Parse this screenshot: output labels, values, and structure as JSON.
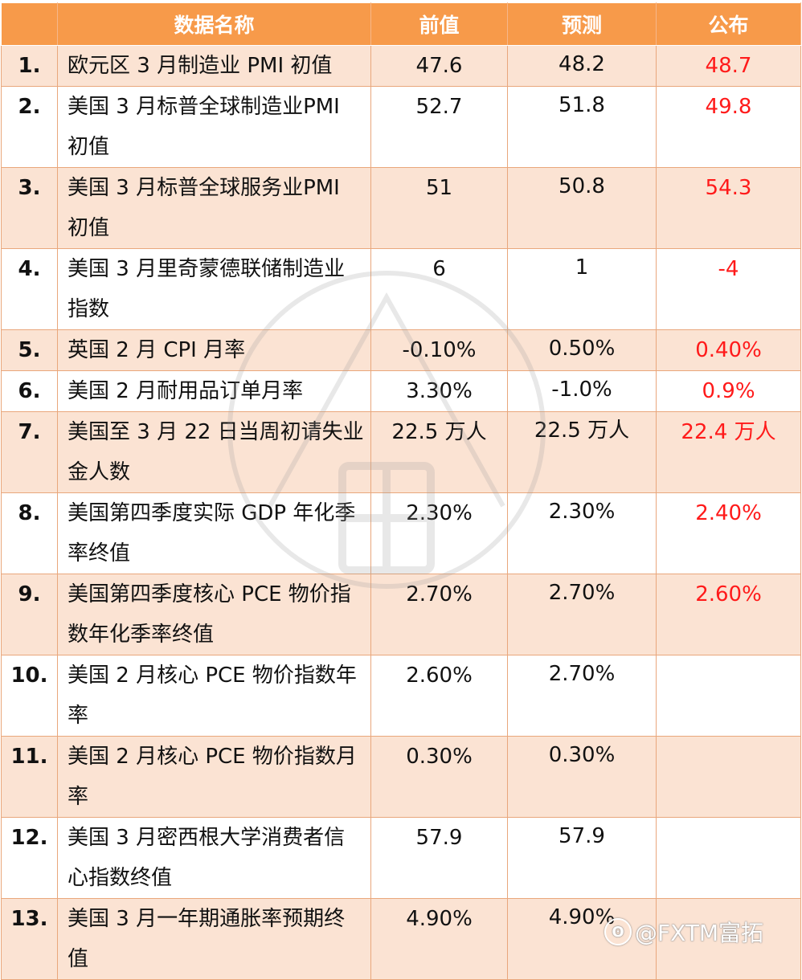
{
  "table": {
    "headers": [
      "",
      "数据名称",
      "前值",
      "预测",
      "公布"
    ],
    "rows": [
      {
        "index": "1.",
        "name": "欧元区 3 月制造业 PMI 初值",
        "prev": "47.6",
        "forecast": "48.2",
        "published": "48.7"
      },
      {
        "index": "2.",
        "name": "美国 3 月标普全球制造业PMI 初值",
        "prev": "52.7",
        "forecast": "51.8",
        "published": "49.8"
      },
      {
        "index": "3.",
        "name": "美国 3 月标普全球服务业PMI 初值",
        "prev": "51",
        "forecast": "50.8",
        "published": "54.3"
      },
      {
        "index": "4.",
        "name": "美国 3 月里奇蒙德联储制造业指数",
        "prev": "6",
        "forecast": "1",
        "published": "-4"
      },
      {
        "index": "5.",
        "name": "英国 2 月 CPI 月率",
        "prev": "-0.10%",
        "forecast": "0.50%",
        "published": "0.40%"
      },
      {
        "index": "6.",
        "name": "美国 2 月耐用品订单月率",
        "prev": "3.30%",
        "forecast": "-1.0%",
        "published": "0.9%"
      },
      {
        "index": "7.",
        "name": "美国至 3 月 22 日当周初请失业金人数",
        "prev": "22.5 万人",
        "forecast": "22.5 万人",
        "published": "22.4 万人"
      },
      {
        "index": "8.",
        "name": "美国第四季度实际 GDP 年化季率终值",
        "prev": "2.30%",
        "forecast": "2.30%",
        "published": "2.40%"
      },
      {
        "index": "9.",
        "name": "美国第四季度核心 PCE 物价指数年化季率终值",
        "prev": "2.70%",
        "forecast": "2.70%",
        "published": "2.60%"
      },
      {
        "index": "10.",
        "name": "美国 2 月核心 PCE 物价指数年率",
        "prev": "2.60%",
        "forecast": "2.70%",
        "published": ""
      },
      {
        "index": "11.",
        "name": "美国 2 月核心 PCE 物价指数月率",
        "prev": "0.30%",
        "forecast": "0.30%",
        "published": ""
      },
      {
        "index": "12.",
        "name": "美国 3 月密西根大学消费者信心指数终值",
        "prev": "57.9",
        "forecast": "57.9",
        "published": ""
      },
      {
        "index": "13.",
        "name": "美国 3 月一年期通胀率预期终值",
        "prev": "4.90%",
        "forecast": "4.90%",
        "published": ""
      }
    ]
  },
  "footer_mark": {
    "text": "@FXTM富拓",
    "icon": "weibo-logo-icon"
  },
  "colors": {
    "header": "#f79a4a",
    "shade": "#fbe3d3",
    "published": "#ff1a1a",
    "border": "#e9a77c"
  }
}
